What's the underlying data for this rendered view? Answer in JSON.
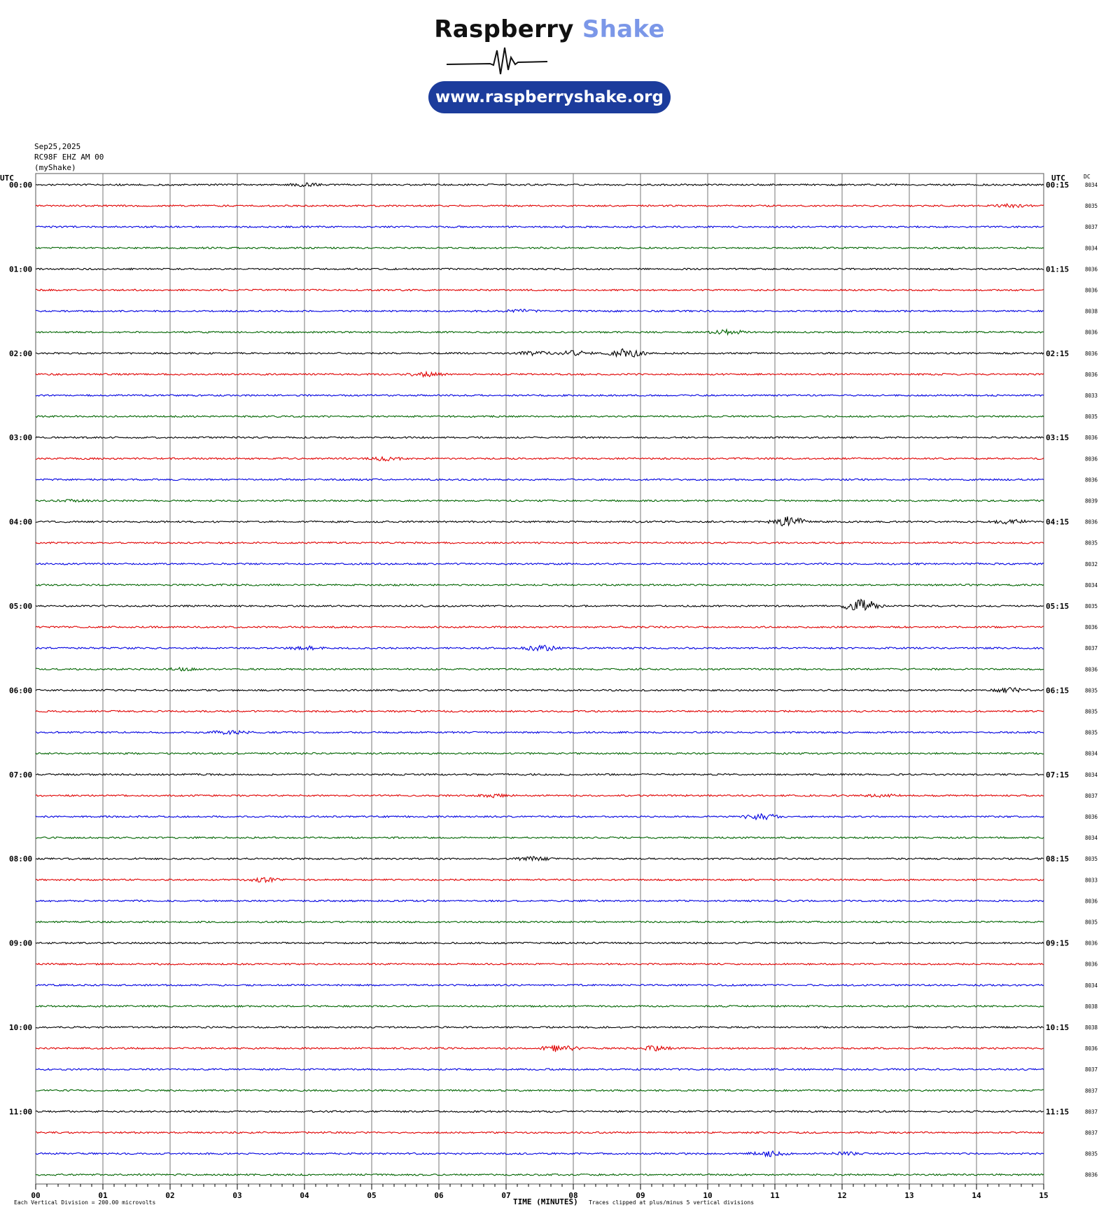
{
  "logo": {
    "brand_word1": "Raspberry",
    "brand_word2": "Shake",
    "url": "www.raspberryshake.org",
    "colors": {
      "dark": "#111111",
      "accent": "#7b97e8",
      "pill": "#1c3c9c"
    }
  },
  "header": {
    "date": "Sep25,2025",
    "station": "RC98F EHZ AM 00",
    "network": "(myShake)"
  },
  "axes": {
    "left_title": "UTC",
    "right_title": "UTC",
    "dc_title": "DC",
    "x_label": "TIME (MINUTES)",
    "x_ticks": [
      "00",
      "01",
      "02",
      "03",
      "04",
      "05",
      "06",
      "07",
      "08",
      "09",
      "10",
      "11",
      "12",
      "13",
      "14",
      "15"
    ],
    "left_times": [
      "00:00",
      "01:00",
      "02:00",
      "03:00",
      "04:00",
      "05:00",
      "06:00",
      "07:00",
      "08:00",
      "09:00",
      "10:00",
      "11:00"
    ],
    "right_times": [
      "00:15",
      "01:15",
      "02:15",
      "03:15",
      "04:15",
      "05:15",
      "06:15",
      "07:15",
      "08:15",
      "09:15",
      "10:15",
      "11:15"
    ]
  },
  "footer": {
    "scale_note": "Each Vertical Division =  200.00 microvolts",
    "clip_note": "Traces clipped at plus/minus 5 vertical divisions"
  },
  "chart_data": {
    "type": "line",
    "title": "Sep25,2025 RC98F EHZ AM 00 (myShake)",
    "xlabel": "TIME (MINUTES)",
    "ylabel": "UTC",
    "xlim": [
      0,
      15
    ],
    "line_minutes": 15,
    "series_colors": [
      "#000000",
      "#e00000",
      "#0000e0",
      "#006400"
    ],
    "grid": true,
    "dc_values": [
      8034,
      8035,
      8037,
      8034,
      8036,
      8036,
      8038,
      8036,
      8036,
      8036,
      8033,
      8035,
      8036,
      8036,
      8036,
      8039,
      8036,
      8035,
      8032,
      8034,
      8035,
      8036,
      8037,
      8036,
      8035,
      8035,
      8035,
      8034,
      8034,
      8037,
      8036,
      8034,
      8035,
      8033,
      8036,
      8035,
      8036,
      8036,
      8034,
      8038,
      8038,
      8036,
      8037,
      8037,
      8037,
      8037,
      8035,
      8036
    ],
    "events": [
      {
        "line": 0,
        "minute": 4.0,
        "strength": 0.6
      },
      {
        "line": 1,
        "minute": 14.5,
        "strength": 0.8
      },
      {
        "line": 6,
        "minute": 7.2,
        "strength": 0.5
      },
      {
        "line": 7,
        "minute": 10.3,
        "strength": 1.0
      },
      {
        "line": 8,
        "minute": 8.8,
        "strength": 2.0
      },
      {
        "line": 8,
        "minute": 8.0,
        "strength": 1.0
      },
      {
        "line": 8,
        "minute": 7.4,
        "strength": 0.8
      },
      {
        "line": 9,
        "minute": 5.8,
        "strength": 0.8
      },
      {
        "line": 13,
        "minute": 5.2,
        "strength": 0.8
      },
      {
        "line": 15,
        "minute": 0.6,
        "strength": 0.5
      },
      {
        "line": 16,
        "minute": 11.2,
        "strength": 2.2
      },
      {
        "line": 16,
        "minute": 14.5,
        "strength": 1.0
      },
      {
        "line": 20,
        "minute": 12.3,
        "strength": 3.2
      },
      {
        "line": 22,
        "minute": 7.5,
        "strength": 1.2
      },
      {
        "line": 22,
        "minute": 4.0,
        "strength": 0.8
      },
      {
        "line": 23,
        "minute": 2.2,
        "strength": 0.5
      },
      {
        "line": 24,
        "minute": 14.5,
        "strength": 0.9
      },
      {
        "line": 26,
        "minute": 2.9,
        "strength": 0.8
      },
      {
        "line": 29,
        "minute": 6.8,
        "strength": 0.6
      },
      {
        "line": 29,
        "minute": 12.6,
        "strength": 0.6
      },
      {
        "line": 30,
        "minute": 10.8,
        "strength": 1.5
      },
      {
        "line": 32,
        "minute": 7.4,
        "strength": 0.8
      },
      {
        "line": 33,
        "minute": 3.4,
        "strength": 0.8
      },
      {
        "line": 41,
        "minute": 7.8,
        "strength": 1.6
      },
      {
        "line": 41,
        "minute": 9.2,
        "strength": 1.0
      },
      {
        "line": 46,
        "minute": 10.9,
        "strength": 1.2
      },
      {
        "line": 46,
        "minute": 12.1,
        "strength": 0.6
      }
    ]
  }
}
